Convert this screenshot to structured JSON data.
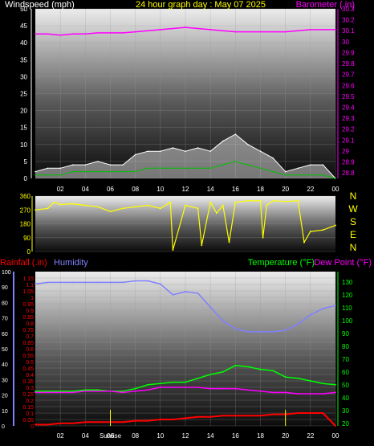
{
  "header": {
    "left_label": "Windspeed (mph)",
    "center_title": "24 hour graph day : May 07 2025",
    "right_label": "Barometer (.in)"
  },
  "colors": {
    "background": "#000000",
    "title_text": "#ffff00",
    "barometer": "#ff00ff",
    "wind_gust": "#ffffff",
    "wind_avg": "#00c000",
    "direction": "#ffff00",
    "rainfall": "#ff0000",
    "humidity": "#8080ff",
    "temperature": "#00ff00",
    "dew_point": "#ff00ff",
    "axis_text": "#ffffff"
  },
  "x_ticks": [
    "02",
    "04",
    "06",
    "08",
    "10",
    "12",
    "14",
    "16",
    "18",
    "20",
    "22",
    "00"
  ],
  "chart_data": [
    {
      "type": "line",
      "name": "wind_and_barometer",
      "x_hours": [
        0,
        1,
        2,
        3,
        4,
        5,
        6,
        7,
        8,
        9,
        10,
        11,
        12,
        13,
        14,
        15,
        16,
        17,
        18,
        19,
        20,
        21,
        22,
        23,
        24
      ],
      "y_left_ticks": [
        0,
        5,
        10,
        15,
        20,
        25,
        30,
        35,
        40,
        45,
        50
      ],
      "ylim_left": [
        0,
        50
      ],
      "y_right_ticks": [
        "28.8",
        "28.9",
        "29",
        "29.1",
        "29.2",
        "29.3",
        "29.4",
        "29.5",
        "29.6",
        "29.7",
        "29.8",
        "29.9",
        "30",
        "30.1",
        "30.2",
        "30.3"
      ],
      "ylim_right": [
        28.75,
        30.3
      ],
      "series": [
        {
          "role": "barometer",
          "axis": "right",
          "values": [
            30.07,
            30.07,
            30.06,
            30.07,
            30.07,
            30.08,
            30.08,
            30.08,
            30.09,
            30.1,
            30.11,
            30.12,
            30.13,
            30.12,
            30.11,
            30.1,
            30.09,
            30.09,
            30.09,
            30.09,
            30.09,
            30.1,
            30.11,
            30.11,
            30.11
          ]
        },
        {
          "role": "gust",
          "axis": "left",
          "values": [
            2,
            3,
            3,
            4,
            4,
            5,
            4,
            4,
            7,
            8,
            8,
            9,
            8,
            9,
            8,
            11,
            13,
            10,
            8,
            6,
            2,
            3,
            4,
            4,
            0
          ]
        },
        {
          "role": "average",
          "axis": "left",
          "values": [
            1,
            1,
            1,
            2,
            2,
            2,
            2,
            2,
            2,
            3,
            3,
            3,
            3,
            3,
            3,
            4,
            5,
            4,
            3,
            2,
            1,
            1,
            1,
            1,
            0
          ]
        }
      ]
    },
    {
      "type": "line",
      "name": "wind_direction",
      "y_ticks": [
        0,
        90,
        180,
        270,
        360
      ],
      "ylim": [
        0,
        360
      ],
      "compass_labels": [
        "N",
        "W",
        "S",
        "E",
        "N"
      ],
      "x_hours": [
        0,
        1,
        1.5,
        2,
        3,
        4,
        5,
        6,
        7,
        8,
        9,
        10,
        10.8,
        11,
        12,
        13,
        13.3,
        14,
        14.5,
        15,
        15.5,
        16,
        17,
        18,
        18.2,
        18.5,
        19,
        20,
        21,
        21.5,
        22,
        23,
        24
      ],
      "values": [
        270,
        280,
        320,
        305,
        310,
        300,
        290,
        260,
        280,
        290,
        300,
        280,
        320,
        10,
        300,
        280,
        40,
        320,
        250,
        300,
        60,
        320,
        330,
        330,
        90,
        300,
        330,
        325,
        330,
        60,
        130,
        140,
        170
      ]
    },
    {
      "type": "line",
      "name": "rain_humidity_temperature",
      "x_hours": [
        0,
        1,
        2,
        3,
        4,
        5,
        6,
        7,
        8,
        9,
        10,
        11,
        12,
        13,
        14,
        15,
        16,
        17,
        18,
        19,
        20,
        21,
        22,
        23,
        24
      ],
      "y_rain_ticks": [
        "0",
        "0.05",
        "0.1",
        "0.15",
        "0.2",
        "0.25",
        "0.3",
        "0.35",
        "0.4",
        "0.45",
        "0.5",
        "0.55",
        "0.6",
        "0.65",
        "0.7",
        "0.75",
        "0.8",
        "0.85",
        "0.9",
        "0.95",
        "1",
        "1.05",
        "1.1",
        "1.15"
      ],
      "ylim_rain": [
        0,
        1.2
      ],
      "y_humidity_ticks": [
        0,
        10,
        20,
        30,
        40,
        50,
        60,
        70,
        80,
        90,
        100
      ],
      "ylim_humidity": [
        0,
        100
      ],
      "y_temp_ticks": [
        20,
        30,
        40,
        50,
        60,
        70,
        80,
        90,
        100,
        110,
        120,
        130
      ],
      "ylim_temp": [
        18,
        138
      ],
      "series": [
        {
          "role": "rainfall",
          "axis": "rain",
          "values": [
            0.01,
            0.01,
            0.02,
            0.02,
            0.03,
            0.03,
            0.03,
            0.03,
            0.04,
            0.04,
            0.05,
            0.05,
            0.06,
            0.07,
            0.07,
            0.08,
            0.08,
            0.08,
            0.08,
            0.09,
            0.09,
            0.1,
            0.1,
            0.1,
            0.0
          ]
        },
        {
          "role": "humidity",
          "axis": "humidity",
          "values": [
            92,
            93,
            93,
            93,
            93,
            93,
            93,
            93,
            94,
            94,
            92,
            85,
            87,
            86,
            77,
            68,
            63,
            61,
            61,
            61,
            62,
            66,
            72,
            76,
            78
          ]
        },
        {
          "role": "temperature",
          "axis": "temp",
          "values": [
            45,
            45,
            45,
            45,
            46,
            46,
            45,
            45,
            47,
            50,
            51,
            52,
            52,
            55,
            58,
            60,
            65,
            64,
            62,
            61,
            56,
            55,
            53,
            51,
            50
          ]
        },
        {
          "role": "dew_point",
          "axis": "temp",
          "values": [
            44,
            44,
            44,
            44,
            45,
            45,
            45,
            44,
            45,
            46,
            48,
            48,
            48,
            48,
            47,
            47,
            47,
            46,
            45,
            44,
            44,
            43,
            43,
            43,
            44
          ]
        }
      ],
      "markers": [
        "Sunrise"
      ]
    }
  ],
  "footer": {
    "rain_label": "Rainfall (.in)",
    "humidity_label": "Humidity",
    "temp_label": "Temperature (°F)",
    "dew_label": "Dew Point (°F)",
    "sunrise_label": "Sunrise"
  }
}
